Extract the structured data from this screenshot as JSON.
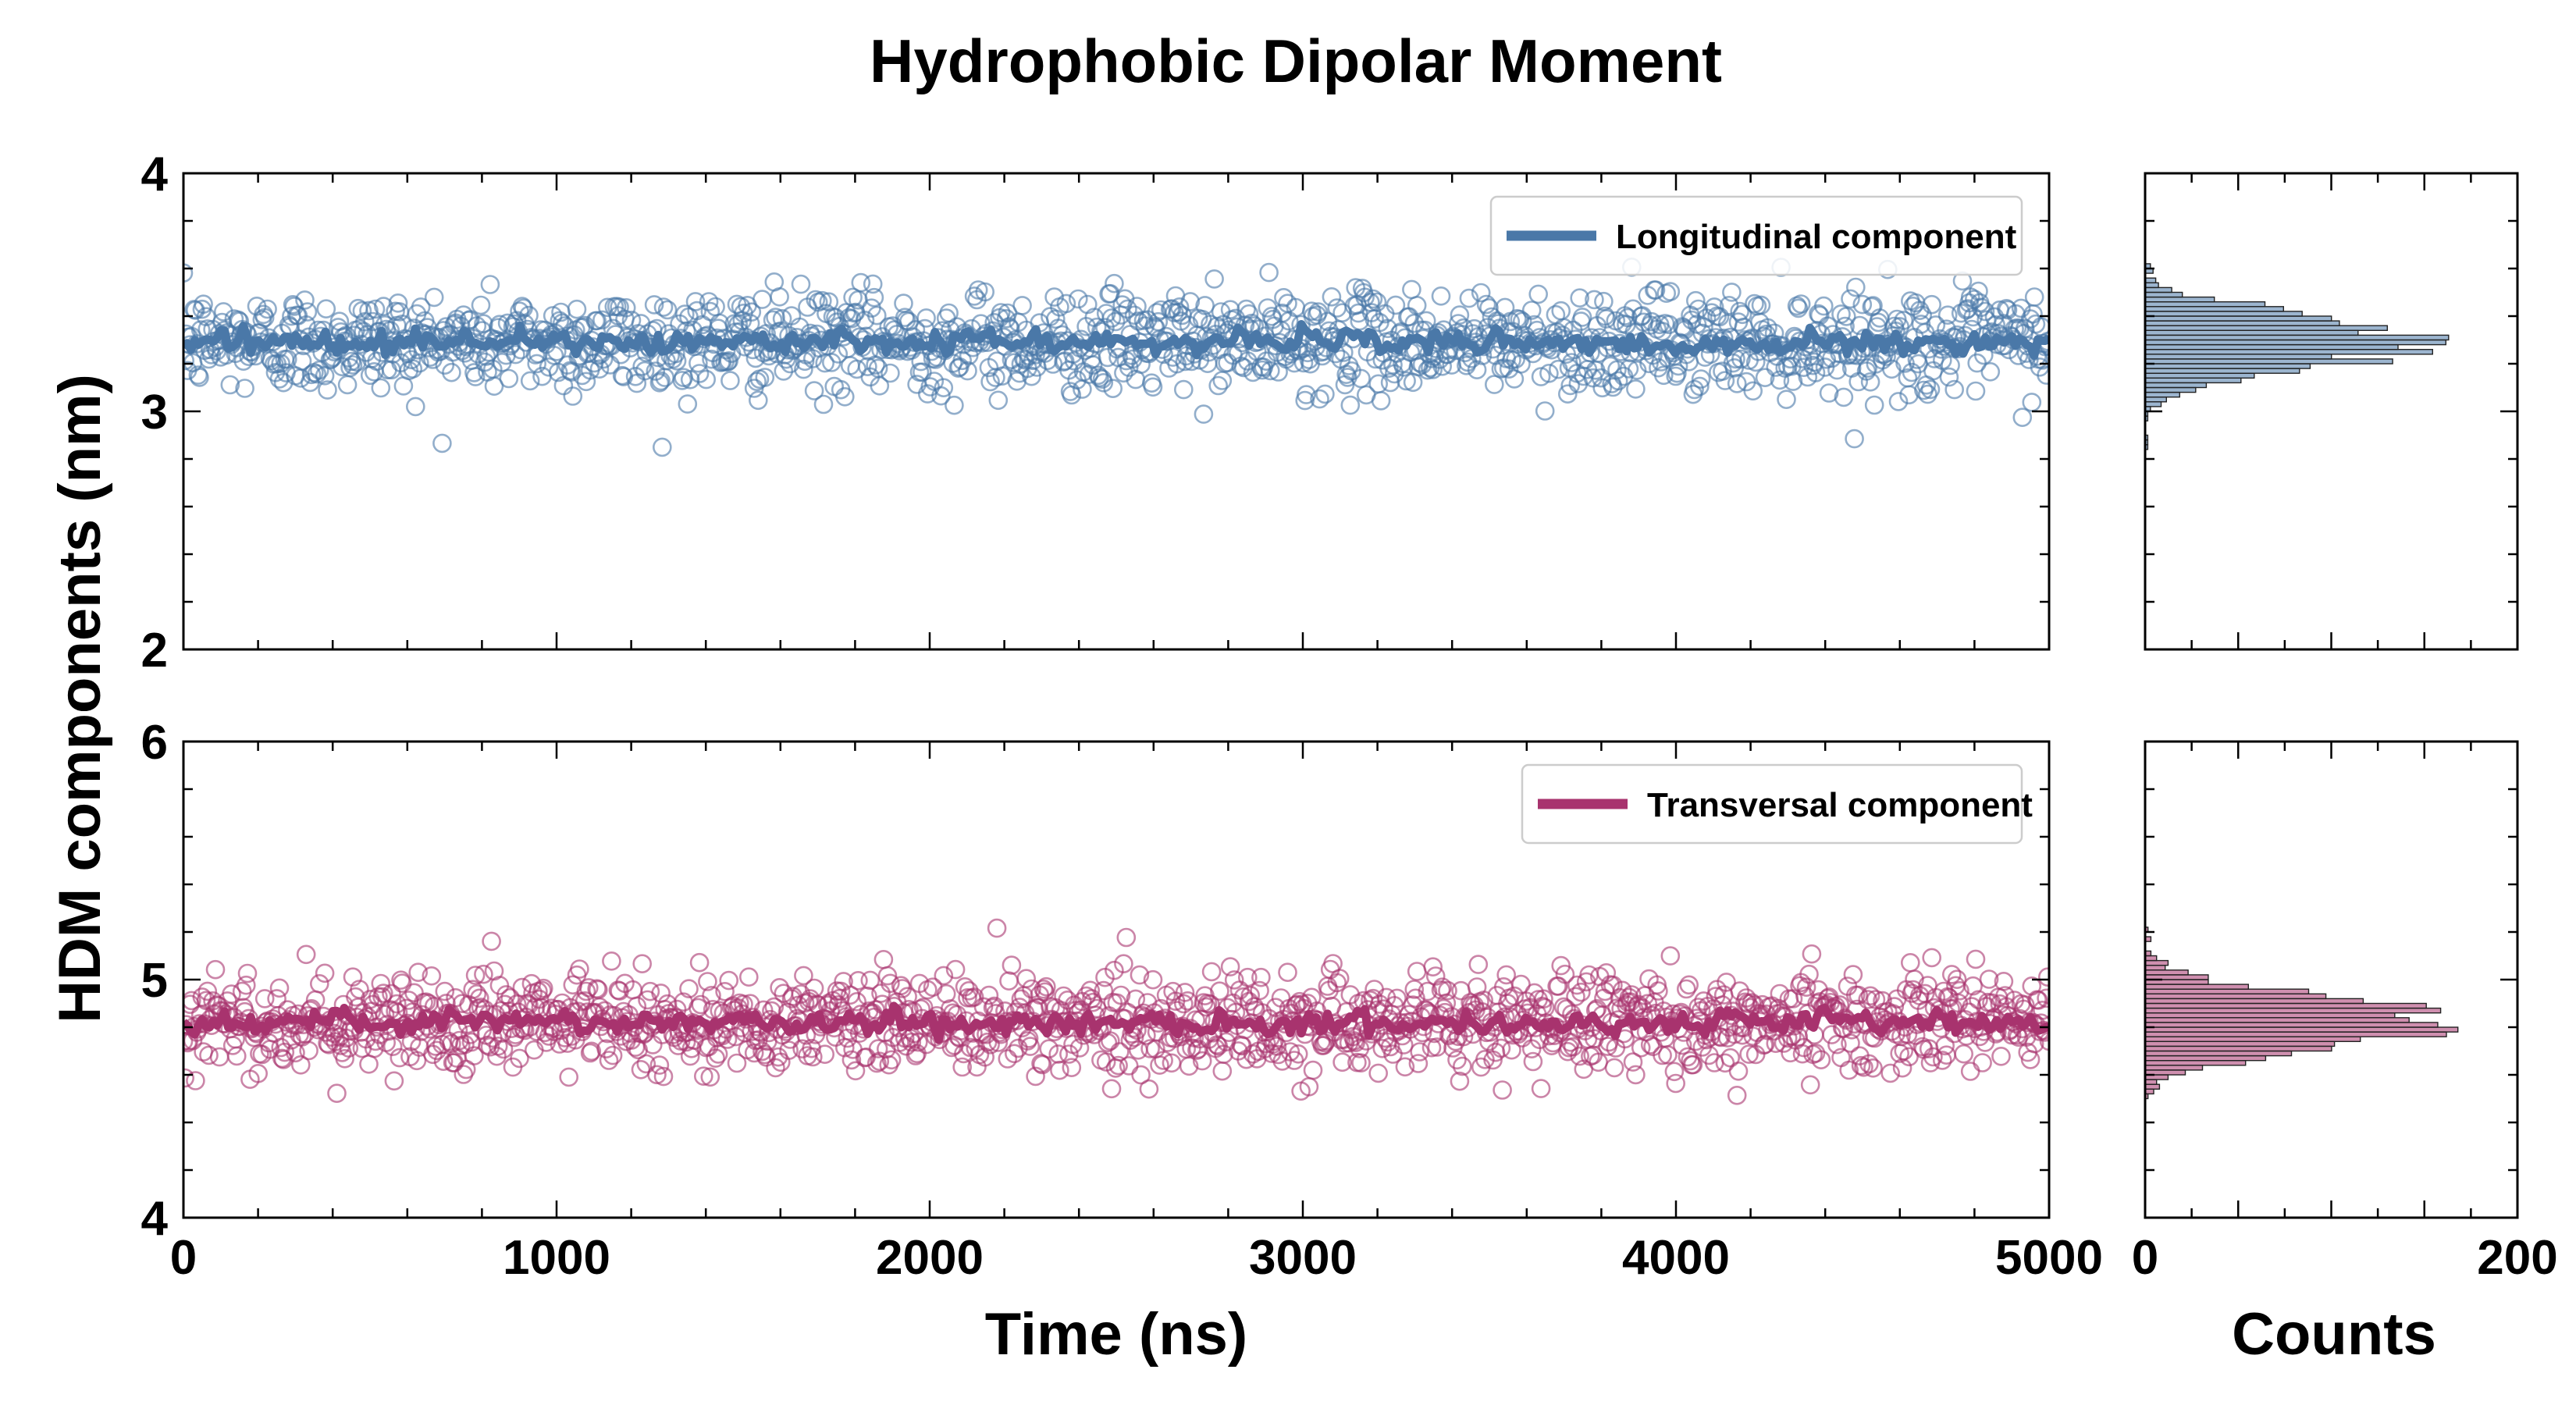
{
  "chart_data": {
    "type": "scatter",
    "title": "Hydrophobic Dipolar Moment",
    "ylabel": "HDM components (nm)",
    "panels": [
      {
        "id": "top",
        "xlabel": "",
        "x_ticks": [],
        "xlim": [
          0,
          5000
        ],
        "ylim": [
          2,
          4
        ],
        "y_ticks": [
          "2",
          "3",
          "4"
        ],
        "series_name": "Longitudinal component",
        "color": "#4a78a8",
        "mean": 3.29,
        "scatter_sd": 0.105,
        "smooth_sd": 0.035,
        "n_points": 1400,
        "hist": {
          "xlim": [
            0,
            200
          ],
          "peak_count": 163,
          "bin_width": 0.02
        }
      },
      {
        "id": "bottom",
        "xlabel": "Time (ns)",
        "x_ticks": [
          "0",
          "1000",
          "2000",
          "3000",
          "4000",
          "5000"
        ],
        "xlim": [
          0,
          5000
        ],
        "ylim": [
          4,
          6
        ],
        "y_ticks": [
          "4",
          "5",
          "6"
        ],
        "series_name": "Transversal component",
        "color": "#a8336e",
        "mean": 4.82,
        "scatter_sd": 0.105,
        "smooth_sd": 0.035,
        "n_points": 1400,
        "hist": {
          "xlim": [
            0,
            200
          ],
          "peak_count": 168,
          "bin_width": 0.02
        }
      }
    ],
    "hist_xlabel": "Counts",
    "hist_x_ticks": [
      "0",
      "200"
    ]
  }
}
